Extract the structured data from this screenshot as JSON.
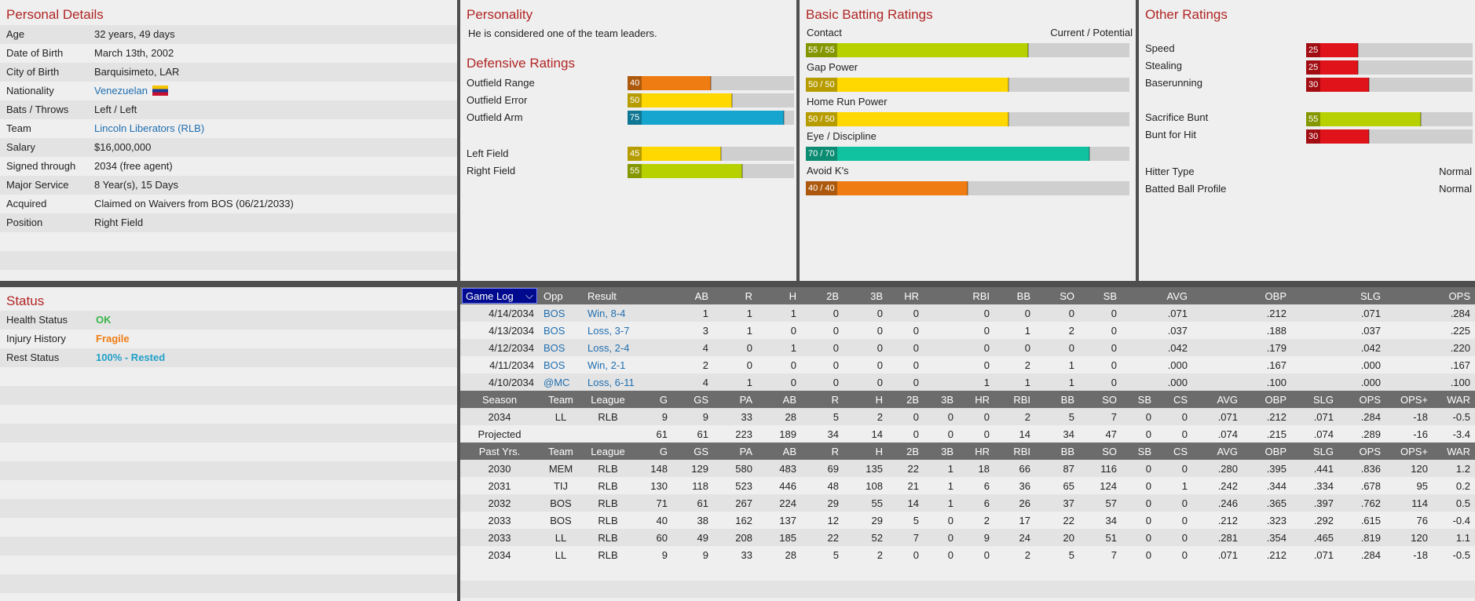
{
  "personal": {
    "title": "Personal Details",
    "rows": [
      {
        "key": "Age",
        "value": "32 years, 49 days"
      },
      {
        "key": "Date of Birth",
        "value": "March 13th, 2002"
      },
      {
        "key": "City of Birth",
        "value": "Barquisimeto, LAR"
      },
      {
        "key": "Nationality",
        "value": "Venezuelan"
      },
      {
        "key": "Bats / Throws",
        "value": "Left / Left"
      },
      {
        "key": "Team",
        "value": "Lincoln Liberators (RLB)"
      },
      {
        "key": "Salary",
        "value": "$16,000,000"
      },
      {
        "key": "Signed through",
        "value": "2034 (free agent)"
      },
      {
        "key": "Major Service",
        "value": "8 Year(s), 15 Days"
      },
      {
        "key": "Acquired",
        "value": "Claimed on Waivers from BOS (06/21/2033)"
      },
      {
        "key": "Position",
        "value": "Right Field"
      }
    ]
  },
  "personality": {
    "title": "Personality",
    "text": "He is considered one of the team leaders."
  },
  "defensive": {
    "title": "Defensive Ratings",
    "rows": [
      {
        "label": "Outfield Range",
        "value": 40,
        "color": "#ef7c12"
      },
      {
        "label": "Outfield Error",
        "value": 50,
        "color": "#fed800"
      },
      {
        "label": "Outfield Arm",
        "value": 75,
        "color": "#16a5ce"
      },
      {
        "label": "Left Field",
        "value": 45,
        "color": "#fed800"
      },
      {
        "label": "Right Field",
        "value": 55,
        "color": "#b7d100"
      }
    ]
  },
  "batting": {
    "title": "Basic Batting Ratings",
    "col_header": "Current / Potential",
    "rows": [
      {
        "label": "Contact",
        "text": "55 / 55",
        "value": 55,
        "color": "#b7d100"
      },
      {
        "label": "Gap Power",
        "text": "50 / 50",
        "value": 50,
        "color": "#fed800"
      },
      {
        "label": "Home Run Power",
        "text": "50 / 50",
        "value": 50,
        "color": "#fed800"
      },
      {
        "label": "Eye / Discipline",
        "text": "70 / 70",
        "value": 70,
        "color": "#10c2a0"
      },
      {
        "label": "Avoid K's",
        "text": "40 / 40",
        "value": 40,
        "color": "#ef7c12"
      }
    ]
  },
  "other": {
    "title": "Other Ratings",
    "rows": [
      {
        "label": "Speed",
        "value": 25,
        "color": "#e0121a"
      },
      {
        "label": "Stealing",
        "value": 25,
        "color": "#e0121a"
      },
      {
        "label": "Baserunning",
        "value": 30,
        "color": "#e0121a"
      },
      {
        "label": "Sacrifice Bunt",
        "value": 55,
        "color": "#b7d100"
      },
      {
        "label": "Bunt for Hit",
        "value": 30,
        "color": "#e0121a"
      }
    ],
    "hitter_type_label": "Hitter Type",
    "hitter_type_value": "Normal",
    "batted_ball_label": "Batted Ball Profile",
    "batted_ball_value": "Normal"
  },
  "status": {
    "title": "Status",
    "rows": [
      {
        "key": "Health Status",
        "value": "OK",
        "color": "#3bb54a"
      },
      {
        "key": "Injury History",
        "value": "Fragile",
        "color": "#ef7c12"
      },
      {
        "key": "Rest Status",
        "value": "100% - Rested",
        "color": "#22a0c8"
      }
    ]
  },
  "game_log": {
    "select_label": "Game Log",
    "headers": [
      "Opp",
      "Result",
      "AB",
      "R",
      "H",
      "2B",
      "3B",
      "HR",
      "RBI",
      "BB",
      "SO",
      "SB",
      "AVG",
      "OBP",
      "SLG",
      "OPS"
    ],
    "rows": [
      [
        "4/14/2034",
        "BOS",
        "Win, 8-4",
        "1",
        "1",
        "1",
        "0",
        "0",
        "0",
        "0",
        "0",
        "0",
        "0",
        ".071",
        ".212",
        ".071",
        ".284"
      ],
      [
        "4/13/2034",
        "BOS",
        "Loss, 3-7",
        "3",
        "1",
        "0",
        "0",
        "0",
        "0",
        "0",
        "1",
        "2",
        "0",
        ".037",
        ".188",
        ".037",
        ".225"
      ],
      [
        "4/12/2034",
        "BOS",
        "Loss, 2-4",
        "4",
        "0",
        "1",
        "0",
        "0",
        "0",
        "0",
        "0",
        "0",
        "0",
        ".042",
        ".179",
        ".042",
        ".220"
      ],
      [
        "4/11/2034",
        "BOS",
        "Win, 2-1",
        "2",
        "0",
        "0",
        "0",
        "0",
        "0",
        "0",
        "2",
        "1",
        "0",
        ".000",
        ".167",
        ".000",
        ".167"
      ],
      [
        "4/10/2034",
        "@MC",
        "Loss, 6-11",
        "4",
        "1",
        "0",
        "0",
        "0",
        "0",
        "1",
        "1",
        "1",
        "0",
        ".000",
        ".100",
        ".000",
        ".100"
      ]
    ]
  },
  "season": {
    "headers": [
      "Season",
      "Team",
      "League",
      "G",
      "GS",
      "PA",
      "AB",
      "R",
      "H",
      "2B",
      "3B",
      "HR",
      "RBI",
      "BB",
      "SO",
      "SB",
      "CS",
      "AVG",
      "OBP",
      "SLG",
      "OPS",
      "OPS+",
      "WAR"
    ],
    "rows": [
      [
        "2034",
        "LL",
        "RLB",
        "9",
        "9",
        "33",
        "28",
        "5",
        "2",
        "0",
        "0",
        "0",
        "2",
        "5",
        "7",
        "0",
        "0",
        ".071",
        ".212",
        ".071",
        ".284",
        "-18",
        "-0.5"
      ],
      [
        "Projected",
        "",
        "",
        "61",
        "61",
        "223",
        "189",
        "34",
        "14",
        "0",
        "0",
        "0",
        "14",
        "34",
        "47",
        "0",
        "0",
        ".074",
        ".215",
        ".074",
        ".289",
        "-16",
        "-3.4"
      ]
    ]
  },
  "past": {
    "headers": [
      "Past Yrs.",
      "Team",
      "League",
      "G",
      "GS",
      "PA",
      "AB",
      "R",
      "H",
      "2B",
      "3B",
      "HR",
      "RBI",
      "BB",
      "SO",
      "SB",
      "CS",
      "AVG",
      "OBP",
      "SLG",
      "OPS",
      "OPS+",
      "WAR"
    ],
    "rows": [
      [
        "2030",
        "MEM",
        "RLB",
        "148",
        "129",
        "580",
        "483",
        "69",
        "135",
        "22",
        "1",
        "18",
        "66",
        "87",
        "116",
        "0",
        "0",
        ".280",
        ".395",
        ".441",
        ".836",
        "120",
        "1.2"
      ],
      [
        "2031",
        "TIJ",
        "RLB",
        "130",
        "118",
        "523",
        "446",
        "48",
        "108",
        "21",
        "1",
        "6",
        "36",
        "65",
        "124",
        "0",
        "1",
        ".242",
        ".344",
        ".334",
        ".678",
        "95",
        "0.2"
      ],
      [
        "2032",
        "BOS",
        "RLB",
        "71",
        "61",
        "267",
        "224",
        "29",
        "55",
        "14",
        "1",
        "6",
        "26",
        "37",
        "57",
        "0",
        "0",
        ".246",
        ".365",
        ".397",
        ".762",
        "114",
        "0.5"
      ],
      [
        "2033",
        "BOS",
        "RLB",
        "40",
        "38",
        "162",
        "137",
        "12",
        "29",
        "5",
        "0",
        "2",
        "17",
        "22",
        "34",
        "0",
        "0",
        ".212",
        ".323",
        ".292",
        ".615",
        "76",
        "-0.4"
      ],
      [
        "2033",
        "LL",
        "RLB",
        "60",
        "49",
        "208",
        "185",
        "22",
        "52",
        "7",
        "0",
        "9",
        "24",
        "20",
        "51",
        "0",
        "0",
        ".281",
        ".354",
        ".465",
        ".819",
        "120",
        "1.1"
      ],
      [
        "2034",
        "LL",
        "RLB",
        "9",
        "9",
        "33",
        "28",
        "5",
        "2",
        "0",
        "0",
        "0",
        "2",
        "5",
        "7",
        "0",
        "0",
        ".071",
        ".212",
        ".071",
        ".284",
        "-18",
        "-0.5"
      ]
    ]
  }
}
